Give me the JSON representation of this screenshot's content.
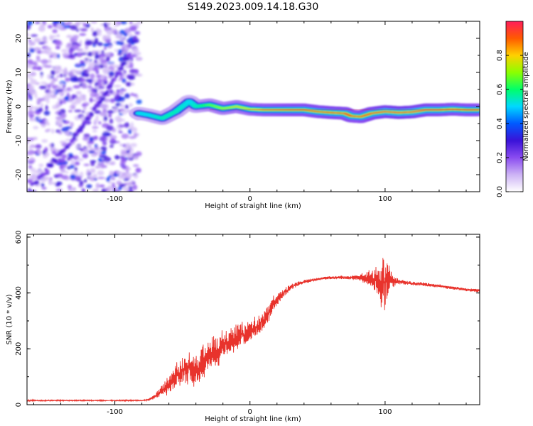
{
  "title": "S149.2023.009.14.18.G30",
  "colors": {
    "snr_line": "#e8332c",
    "spectrogram_cmap": [
      "#ffffff",
      "#cdb3f5",
      "#8a4cf0",
      "#3a12d8",
      "#0059ff",
      "#00d8ff",
      "#00ff6a",
      "#8cff00",
      "#ffd000",
      "#ff5a00",
      "#ff1d5a"
    ]
  },
  "chart_data": [
    {
      "type": "heatmap",
      "name": "spectrogram",
      "xlabel": "Height of straight line (km)",
      "ylabel": "Frequency (Hz)",
      "xlim": [
        -165,
        170
      ],
      "ylim": [
        -25,
        25
      ],
      "xticks": [
        -100,
        0,
        100
      ],
      "xtick_labels": [
        "-100",
        "0",
        "100"
      ],
      "yticks": [
        -20,
        -10,
        0,
        10,
        20
      ],
      "ytick_labels": [
        "-20",
        "-10",
        "0",
        "10",
        "20"
      ],
      "colorbar": {
        "label": "Normalized spectral amplitude",
        "range": [
          0,
          1
        ],
        "ticks": [
          0.0,
          0.2,
          0.4,
          0.6,
          0.8
        ],
        "tick_labels": [
          "0.0",
          "0.2",
          "0.4",
          "0.6",
          "0.8"
        ]
      },
      "noise_region_x": [
        -165,
        -82
      ],
      "diagonal_trace": [
        [
          -165,
          -25
        ],
        [
          -130,
          -9
        ],
        [
          -110,
          2
        ],
        [
          -88,
          16
        ]
      ],
      "frequency_trace": [
        [
          -82,
          -2,
          0.45
        ],
        [
          -75,
          -2.5,
          0.45
        ],
        [
          -65,
          -3.5,
          0.5
        ],
        [
          -55,
          -1.5,
          0.5
        ],
        [
          -45,
          1.5,
          0.45
        ],
        [
          -40,
          0,
          0.5
        ],
        [
          -30,
          0.5,
          0.6
        ],
        [
          -20,
          -0.6,
          0.65
        ],
        [
          -10,
          0,
          0.7
        ],
        [
          0,
          -0.8,
          0.7
        ],
        [
          10,
          -1,
          0.8
        ],
        [
          20,
          -1,
          0.82
        ],
        [
          30,
          -1,
          0.85
        ],
        [
          40,
          -1,
          0.87
        ],
        [
          50,
          -1.5,
          0.88
        ],
        [
          60,
          -1.8,
          0.9
        ],
        [
          70,
          -2,
          0.9
        ],
        [
          75,
          -2.8,
          0.88
        ],
        [
          82,
          -3,
          0.85
        ],
        [
          90,
          -2,
          0.9
        ],
        [
          100,
          -1.5,
          0.93
        ],
        [
          110,
          -1.8,
          0.95
        ],
        [
          120,
          -1.6,
          0.95
        ],
        [
          130,
          -1,
          0.92
        ],
        [
          140,
          -1,
          0.9
        ],
        [
          150,
          -0.8,
          0.88
        ],
        [
          160,
          -1,
          0.86
        ],
        [
          170,
          -1,
          0.85
        ]
      ]
    },
    {
      "type": "line",
      "name": "snr",
      "xlabel": "Height of straight line (km)",
      "ylabel": "SNR (10 * v/v)",
      "xlim": [
        -165,
        170
      ],
      "ylim": [
        0,
        610
      ],
      "xticks": [
        -100,
        0,
        100
      ],
      "xtick_labels": [
        "-100",
        "0",
        "100"
      ],
      "yticks": [
        0,
        200,
        400,
        600
      ],
      "ytick_labels": [
        "0",
        "200",
        "400",
        "600"
      ],
      "x": [
        -165,
        -150,
        -130,
        -110,
        -90,
        -80,
        -75,
        -70,
        -65,
        -60,
        -55,
        -50,
        -45,
        -40,
        -35,
        -30,
        -25,
        -20,
        -15,
        -10,
        -5,
        0,
        5,
        10,
        15,
        20,
        25,
        30,
        40,
        50,
        60,
        70,
        80,
        90,
        95,
        100,
        103,
        106,
        110,
        120,
        130,
        140,
        150,
        160,
        170
      ],
      "y": [
        15,
        15,
        15,
        15,
        15,
        15,
        18,
        30,
        50,
        70,
        100,
        120,
        130,
        120,
        150,
        170,
        190,
        210,
        220,
        240,
        250,
        260,
        280,
        300,
        340,
        380,
        400,
        420,
        440,
        450,
        455,
        455,
        455,
        450,
        440,
        430,
        450,
        445,
        440,
        435,
        430,
        425,
        418,
        412,
        408
      ],
      "noise": [
        4,
        4,
        4,
        4,
        4,
        4,
        6,
        15,
        40,
        60,
        90,
        100,
        110,
        100,
        110,
        100,
        100,
        100,
        90,
        80,
        80,
        70,
        70,
        70,
        60,
        40,
        30,
        20,
        12,
        10,
        10,
        12,
        20,
        60,
        120,
        180,
        120,
        40,
        15,
        12,
        12,
        10,
        10,
        10,
        10
      ]
    }
  ]
}
